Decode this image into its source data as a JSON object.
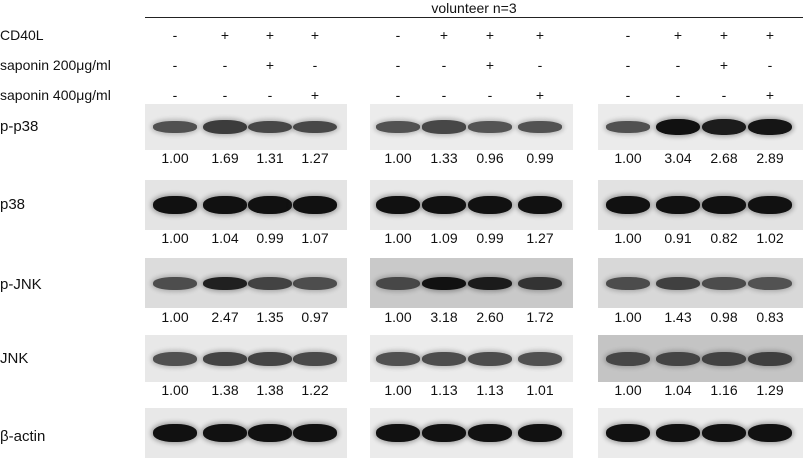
{
  "header": {
    "title": "volunteer n=3"
  },
  "conditions": [
    {
      "label": "CD40L",
      "marks": [
        "-",
        "+",
        "+",
        "+"
      ]
    },
    {
      "label": "saponin 200μg/ml",
      "marks": [
        "-",
        "-",
        "+",
        "-"
      ]
    },
    {
      "label": "saponin 400μg/ml",
      "marks": [
        "-",
        "-",
        "-",
        "+"
      ]
    }
  ],
  "blots": [
    {
      "label": "p-p38",
      "values": [
        [
          "1.00",
          "1.69",
          "1.31",
          "1.27"
        ],
        [
          "1.00",
          "1.33",
          "0.96",
          "0.99"
        ],
        [
          "1.00",
          "3.04",
          "2.68",
          "2.89"
        ]
      ]
    },
    {
      "label": "p38",
      "values": [
        [
          "1.00",
          "1.04",
          "0.99",
          "1.07"
        ],
        [
          "1.00",
          "1.09",
          "0.99",
          "1.27"
        ],
        [
          "1.00",
          "0.91",
          "0.82",
          "1.02"
        ]
      ]
    },
    {
      "label": "p-JNK",
      "values": [
        [
          "1.00",
          "2.47",
          "1.35",
          "0.97"
        ],
        [
          "1.00",
          "3.18",
          "2.60",
          "1.72"
        ],
        [
          "1.00",
          "1.43",
          "0.98",
          "0.83"
        ]
      ]
    },
    {
      "label": "JNK",
      "values": [
        [
          "1.00",
          "1.38",
          "1.38",
          "1.22"
        ],
        [
          "1.00",
          "1.13",
          "1.13",
          "1.01"
        ],
        [
          "1.00",
          "1.04",
          "1.16",
          "1.29"
        ]
      ]
    },
    {
      "label": "β-actin",
      "values": []
    }
  ]
}
